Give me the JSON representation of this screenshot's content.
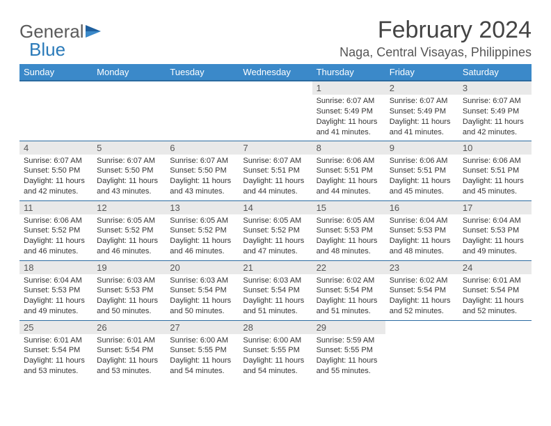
{
  "brand": {
    "part1": "General",
    "part2": "Blue"
  },
  "title": "February 2024",
  "location": "Naga, Central Visayas, Philippines",
  "colors": {
    "header_bg": "#3b89c9",
    "header_border": "#2a6aa0",
    "daynum_bg": "#e9e9e9",
    "text": "#333333",
    "brand_gray": "#5a5a5a",
    "brand_blue": "#2a7ab9"
  },
  "weekdays": [
    "Sunday",
    "Monday",
    "Tuesday",
    "Wednesday",
    "Thursday",
    "Friday",
    "Saturday"
  ],
  "weeks": [
    [
      null,
      null,
      null,
      null,
      {
        "n": "1",
        "l1": "Sunrise: 6:07 AM",
        "l2": "Sunset: 5:49 PM",
        "l3": "Daylight: 11 hours",
        "l4": "and 41 minutes."
      },
      {
        "n": "2",
        "l1": "Sunrise: 6:07 AM",
        "l2": "Sunset: 5:49 PM",
        "l3": "Daylight: 11 hours",
        "l4": "and 41 minutes."
      },
      {
        "n": "3",
        "l1": "Sunrise: 6:07 AM",
        "l2": "Sunset: 5:49 PM",
        "l3": "Daylight: 11 hours",
        "l4": "and 42 minutes."
      }
    ],
    [
      {
        "n": "4",
        "l1": "Sunrise: 6:07 AM",
        "l2": "Sunset: 5:50 PM",
        "l3": "Daylight: 11 hours",
        "l4": "and 42 minutes."
      },
      {
        "n": "5",
        "l1": "Sunrise: 6:07 AM",
        "l2": "Sunset: 5:50 PM",
        "l3": "Daylight: 11 hours",
        "l4": "and 43 minutes."
      },
      {
        "n": "6",
        "l1": "Sunrise: 6:07 AM",
        "l2": "Sunset: 5:50 PM",
        "l3": "Daylight: 11 hours",
        "l4": "and 43 minutes."
      },
      {
        "n": "7",
        "l1": "Sunrise: 6:07 AM",
        "l2": "Sunset: 5:51 PM",
        "l3": "Daylight: 11 hours",
        "l4": "and 44 minutes."
      },
      {
        "n": "8",
        "l1": "Sunrise: 6:06 AM",
        "l2": "Sunset: 5:51 PM",
        "l3": "Daylight: 11 hours",
        "l4": "and 44 minutes."
      },
      {
        "n": "9",
        "l1": "Sunrise: 6:06 AM",
        "l2": "Sunset: 5:51 PM",
        "l3": "Daylight: 11 hours",
        "l4": "and 45 minutes."
      },
      {
        "n": "10",
        "l1": "Sunrise: 6:06 AM",
        "l2": "Sunset: 5:51 PM",
        "l3": "Daylight: 11 hours",
        "l4": "and 45 minutes."
      }
    ],
    [
      {
        "n": "11",
        "l1": "Sunrise: 6:06 AM",
        "l2": "Sunset: 5:52 PM",
        "l3": "Daylight: 11 hours",
        "l4": "and 46 minutes."
      },
      {
        "n": "12",
        "l1": "Sunrise: 6:05 AM",
        "l2": "Sunset: 5:52 PM",
        "l3": "Daylight: 11 hours",
        "l4": "and 46 minutes."
      },
      {
        "n": "13",
        "l1": "Sunrise: 6:05 AM",
        "l2": "Sunset: 5:52 PM",
        "l3": "Daylight: 11 hours",
        "l4": "and 46 minutes."
      },
      {
        "n": "14",
        "l1": "Sunrise: 6:05 AM",
        "l2": "Sunset: 5:52 PM",
        "l3": "Daylight: 11 hours",
        "l4": "and 47 minutes."
      },
      {
        "n": "15",
        "l1": "Sunrise: 6:05 AM",
        "l2": "Sunset: 5:53 PM",
        "l3": "Daylight: 11 hours",
        "l4": "and 48 minutes."
      },
      {
        "n": "16",
        "l1": "Sunrise: 6:04 AM",
        "l2": "Sunset: 5:53 PM",
        "l3": "Daylight: 11 hours",
        "l4": "and 48 minutes."
      },
      {
        "n": "17",
        "l1": "Sunrise: 6:04 AM",
        "l2": "Sunset: 5:53 PM",
        "l3": "Daylight: 11 hours",
        "l4": "and 49 minutes."
      }
    ],
    [
      {
        "n": "18",
        "l1": "Sunrise: 6:04 AM",
        "l2": "Sunset: 5:53 PM",
        "l3": "Daylight: 11 hours",
        "l4": "and 49 minutes."
      },
      {
        "n": "19",
        "l1": "Sunrise: 6:03 AM",
        "l2": "Sunset: 5:53 PM",
        "l3": "Daylight: 11 hours",
        "l4": "and 50 minutes."
      },
      {
        "n": "20",
        "l1": "Sunrise: 6:03 AM",
        "l2": "Sunset: 5:54 PM",
        "l3": "Daylight: 11 hours",
        "l4": "and 50 minutes."
      },
      {
        "n": "21",
        "l1": "Sunrise: 6:03 AM",
        "l2": "Sunset: 5:54 PM",
        "l3": "Daylight: 11 hours",
        "l4": "and 51 minutes."
      },
      {
        "n": "22",
        "l1": "Sunrise: 6:02 AM",
        "l2": "Sunset: 5:54 PM",
        "l3": "Daylight: 11 hours",
        "l4": "and 51 minutes."
      },
      {
        "n": "23",
        "l1": "Sunrise: 6:02 AM",
        "l2": "Sunset: 5:54 PM",
        "l3": "Daylight: 11 hours",
        "l4": "and 52 minutes."
      },
      {
        "n": "24",
        "l1": "Sunrise: 6:01 AM",
        "l2": "Sunset: 5:54 PM",
        "l3": "Daylight: 11 hours",
        "l4": "and 52 minutes."
      }
    ],
    [
      {
        "n": "25",
        "l1": "Sunrise: 6:01 AM",
        "l2": "Sunset: 5:54 PM",
        "l3": "Daylight: 11 hours",
        "l4": "and 53 minutes."
      },
      {
        "n": "26",
        "l1": "Sunrise: 6:01 AM",
        "l2": "Sunset: 5:54 PM",
        "l3": "Daylight: 11 hours",
        "l4": "and 53 minutes."
      },
      {
        "n": "27",
        "l1": "Sunrise: 6:00 AM",
        "l2": "Sunset: 5:55 PM",
        "l3": "Daylight: 11 hours",
        "l4": "and 54 minutes."
      },
      {
        "n": "28",
        "l1": "Sunrise: 6:00 AM",
        "l2": "Sunset: 5:55 PM",
        "l3": "Daylight: 11 hours",
        "l4": "and 54 minutes."
      },
      {
        "n": "29",
        "l1": "Sunrise: 5:59 AM",
        "l2": "Sunset: 5:55 PM",
        "l3": "Daylight: 11 hours",
        "l4": "and 55 minutes."
      },
      null,
      null
    ]
  ]
}
